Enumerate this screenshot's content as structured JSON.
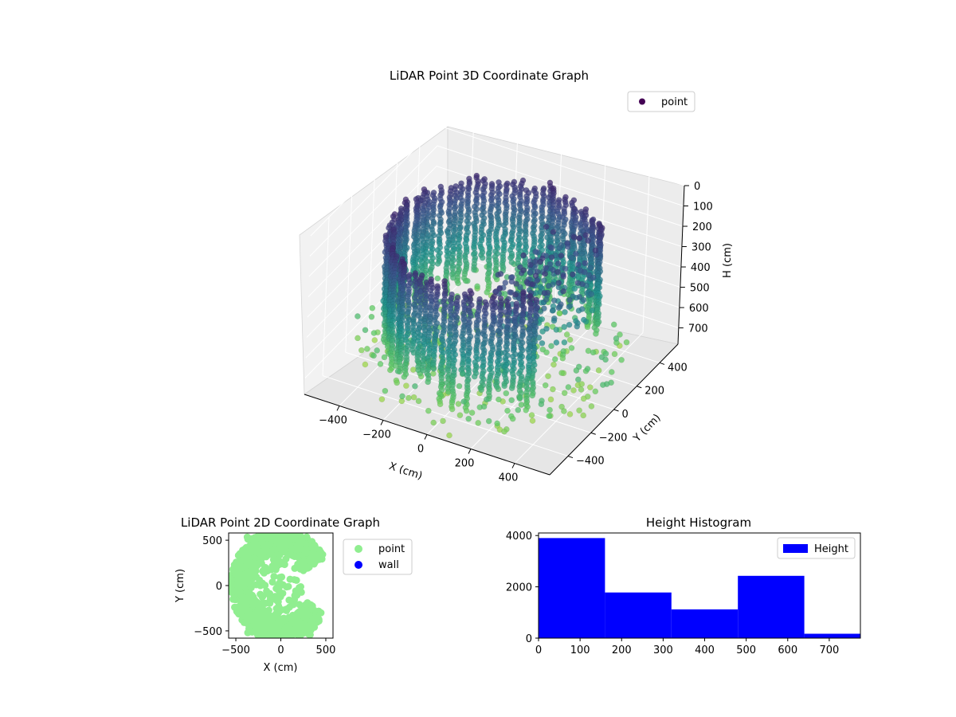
{
  "chart_data": [
    {
      "type": "scatter3d",
      "title": "LiDAR Point 3D Coordinate Graph",
      "xlabel": "X (cm)",
      "ylabel": "Y (cm)",
      "zlabel": "H (cm)",
      "x_ticks": [
        -400,
        -200,
        0,
        200,
        400
      ],
      "y_ticks": [
        -400,
        -200,
        0,
        200,
        400
      ],
      "z_ticks": [
        0,
        100,
        200,
        300,
        400,
        500,
        600,
        700
      ],
      "xlim": [
        -560,
        560
      ],
      "ylim": [
        -560,
        560
      ],
      "zlim": [
        0,
        780
      ],
      "z_inverted": true,
      "colormap": "viridis",
      "series": [
        {
          "name": "point",
          "color": "#440154"
        }
      ],
      "legend_position": "upper right",
      "grid": true,
      "structure": {
        "wall_arc_angle_range_deg": [
          -140,
          140
        ],
        "wall_radius": 430,
        "floor_radius_range": [
          200,
          560
        ]
      }
    },
    {
      "type": "scatter",
      "title": "LiDAR Point 2D Coordinate Graph",
      "xlabel": "X (cm)",
      "ylabel": "Y (cm)",
      "xlim": [
        -580,
        580
      ],
      "ylim": [
        -580,
        580
      ],
      "x_ticks": [
        -500,
        0,
        500
      ],
      "y_ticks": [
        -500,
        0,
        500
      ],
      "series": [
        {
          "name": "point",
          "color": "#90ee90"
        },
        {
          "name": "wall",
          "color": "#0000ff"
        }
      ],
      "legend_position": "outside upper right",
      "grid": false
    },
    {
      "type": "bar",
      "title": "Height Histogram",
      "xlabel": "",
      "ylabel": "",
      "bin_edges": [
        0,
        160,
        320,
        480,
        640,
        775
      ],
      "values": [
        3900,
        1780,
        1120,
        2430,
        170
      ],
      "xlim": [
        0,
        775
      ],
      "ylim": [
        0,
        4100
      ],
      "x_ticks": [
        0,
        100,
        200,
        300,
        400,
        500,
        600,
        700
      ],
      "y_ticks": [
        0,
        2000,
        4000
      ],
      "series": [
        {
          "name": "Height",
          "color": "#0000ff"
        }
      ],
      "legend_position": "upper right",
      "grid": false
    }
  ]
}
